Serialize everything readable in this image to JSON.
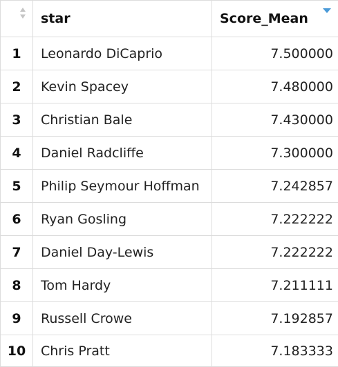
{
  "table": {
    "columns": [
      {
        "key": "index",
        "label": ""
      },
      {
        "key": "star",
        "label": "star"
      },
      {
        "key": "score_mean",
        "label": "Score_Mean"
      }
    ],
    "sort": {
      "column": "score_mean",
      "direction": "descending"
    },
    "colors": {
      "active_sort": "#4a9ad8",
      "neutral_sort": "#c4c4c4",
      "border": "#dcdcdc"
    },
    "rows": [
      {
        "index": "1",
        "star": "Leonardo DiCaprio",
        "score_mean": "7.500000"
      },
      {
        "index": "2",
        "star": "Kevin Spacey",
        "score_mean": "7.480000"
      },
      {
        "index": "3",
        "star": "Christian Bale",
        "score_mean": "7.430000"
      },
      {
        "index": "4",
        "star": "Daniel Radcliffe",
        "score_mean": "7.300000"
      },
      {
        "index": "5",
        "star": "Philip Seymour Hoffman",
        "score_mean": "7.242857"
      },
      {
        "index": "6",
        "star": "Ryan Gosling",
        "score_mean": "7.222222"
      },
      {
        "index": "7",
        "star": "Daniel Day-Lewis",
        "score_mean": "7.222222"
      },
      {
        "index": "8",
        "star": "Tom Hardy",
        "score_mean": "7.211111"
      },
      {
        "index": "9",
        "star": "Russell Crowe",
        "score_mean": "7.192857"
      },
      {
        "index": "10",
        "star": "Chris Pratt",
        "score_mean": "7.183333"
      }
    ]
  }
}
